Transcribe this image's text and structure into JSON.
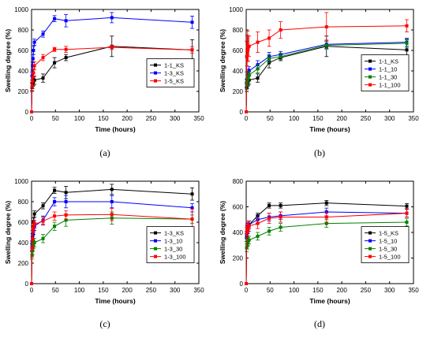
{
  "chart_data": [
    {
      "type": "line",
      "panel": "(a)",
      "xlabel": "Time (hours)",
      "ylabel": "Swelling degree (%)",
      "xlim": [
        0,
        350
      ],
      "ylim": [
        0,
        1000
      ],
      "xticks": [
        0,
        50,
        100,
        150,
        200,
        250,
        300,
        350
      ],
      "yticks": [
        0,
        200,
        400,
        600,
        800,
        1000
      ],
      "legend_position": "center-right",
      "series": [
        {
          "name": "1-1_KS",
          "color": "#000000",
          "x": [
            0,
            1,
            2,
            3,
            4,
            6,
            24,
            48,
            72,
            168,
            336
          ],
          "y": [
            0,
            240,
            270,
            290,
            300,
            310,
            330,
            480,
            530,
            640,
            605
          ],
          "err": [
            0,
            40,
            40,
            40,
            40,
            40,
            40,
            50,
            30,
            100,
            100
          ]
        },
        {
          "name": "1-3_KS",
          "color": "#0000ff",
          "x": [
            0,
            1,
            2,
            3,
            4,
            6,
            24,
            48,
            72,
            168,
            336
          ],
          "y": [
            0,
            350,
            450,
            520,
            600,
            680,
            760,
            910,
            890,
            920,
            875
          ],
          "err": [
            0,
            40,
            40,
            40,
            40,
            30,
            30,
            30,
            60,
            50,
            60
          ]
        },
        {
          "name": "1-5_KS",
          "color": "#ff0000",
          "x": [
            0,
            1,
            2,
            3,
            4,
            6,
            24,
            48,
            72,
            168,
            336
          ],
          "y": [
            0,
            250,
            300,
            340,
            380,
            450,
            530,
            610,
            610,
            630,
            605
          ],
          "err": [
            0,
            40,
            40,
            40,
            40,
            40,
            30,
            20,
            30,
            20,
            30
          ]
        }
      ]
    },
    {
      "type": "line",
      "panel": "(b)",
      "xlabel": "Time (hours)",
      "ylabel": "Swelling degree (%)",
      "xlim": [
        0,
        350
      ],
      "ylim": [
        0,
        1000
      ],
      "xticks": [
        0,
        50,
        100,
        150,
        200,
        250,
        300,
        350
      ],
      "yticks": [
        0,
        200,
        400,
        600,
        800,
        1000
      ],
      "legend_position": "center-right",
      "series": [
        {
          "name": "1-1_KS",
          "color": "#000000",
          "x": [
            0,
            1,
            2,
            3,
            4,
            6,
            24,
            48,
            72,
            168,
            336
          ],
          "y": [
            0,
            240,
            270,
            290,
            300,
            310,
            330,
            480,
            530,
            640,
            605
          ],
          "err": [
            0,
            40,
            40,
            40,
            40,
            40,
            40,
            50,
            30,
            100,
            100
          ]
        },
        {
          "name": "1-1_10",
          "color": "#0000ff",
          "x": [
            0,
            1,
            2,
            3,
            4,
            6,
            24,
            48,
            72,
            168,
            336
          ],
          "y": [
            0,
            280,
            320,
            360,
            380,
            400,
            460,
            540,
            560,
            660,
            680
          ],
          "err": [
            0,
            40,
            40,
            40,
            40,
            40,
            40,
            40,
            30,
            40,
            40
          ]
        },
        {
          "name": "1-1_30",
          "color": "#008000",
          "x": [
            0,
            1,
            2,
            3,
            4,
            6,
            24,
            48,
            72,
            168,
            336
          ],
          "y": [
            0,
            260,
            290,
            320,
            340,
            360,
            420,
            520,
            540,
            650,
            670
          ],
          "err": [
            0,
            40,
            40,
            40,
            40,
            40,
            40,
            40,
            30,
            40,
            40
          ]
        },
        {
          "name": "1-1_100",
          "color": "#ff0000",
          "x": [
            0,
            1,
            2,
            3,
            4,
            6,
            24,
            48,
            72,
            168,
            336
          ],
          "y": [
            0,
            540,
            600,
            640,
            620,
            640,
            680,
            720,
            800,
            830,
            840
          ],
          "err": [
            0,
            150,
            150,
            150,
            120,
            100,
            100,
            80,
            80,
            140,
            60
          ]
        }
      ]
    },
    {
      "type": "line",
      "panel": "(c)",
      "xlabel": "Time (hours)",
      "ylabel": "Swelling degree (%)",
      "xlim": [
        0,
        350
      ],
      "ylim": [
        0,
        1000
      ],
      "xticks": [
        0,
        50,
        100,
        150,
        200,
        250,
        300,
        350
      ],
      "yticks": [
        0,
        200,
        400,
        600,
        800,
        1000
      ],
      "legend_position": "center-right",
      "series": [
        {
          "name": "1-3_KS",
          "color": "#000000",
          "x": [
            0,
            1,
            2,
            3,
            4,
            6,
            24,
            48,
            72,
            168,
            336
          ],
          "y": [
            0,
            350,
            450,
            520,
            600,
            680,
            760,
            910,
            890,
            920,
            875
          ],
          "err": [
            0,
            40,
            40,
            40,
            40,
            30,
            30,
            30,
            60,
            50,
            60
          ]
        },
        {
          "name": "1-3_10",
          "color": "#0000ff",
          "x": [
            0,
            1,
            2,
            3,
            4,
            6,
            24,
            48,
            72,
            168,
            336
          ],
          "y": [
            0,
            360,
            420,
            480,
            520,
            560,
            620,
            800,
            800,
            800,
            740
          ],
          "err": [
            0,
            40,
            40,
            40,
            40,
            40,
            40,
            40,
            60,
            60,
            40
          ]
        },
        {
          "name": "1-3_30",
          "color": "#008000",
          "x": [
            0,
            1,
            2,
            3,
            4,
            6,
            24,
            48,
            72,
            168,
            336
          ],
          "y": [
            0,
            280,
            320,
            360,
            380,
            400,
            440,
            560,
            620,
            640,
            630
          ],
          "err": [
            0,
            40,
            40,
            40,
            40,
            40,
            40,
            40,
            60,
            60,
            40
          ]
        },
        {
          "name": "1-3_100",
          "color": "#ff0000",
          "x": [
            0,
            1,
            2,
            3,
            4,
            6,
            24,
            48,
            72,
            168,
            336
          ],
          "y": [
            0,
            340,
            440,
            520,
            560,
            580,
            610,
            660,
            670,
            675,
            630
          ],
          "err": [
            0,
            80,
            80,
            80,
            60,
            40,
            40,
            40,
            40,
            60,
            100
          ]
        }
      ]
    },
    {
      "type": "line",
      "panel": "(d)",
      "xlabel": "Time (hours)",
      "ylabel": "Swelling degree (%)",
      "xlim": [
        0,
        350
      ],
      "ylim": [
        0,
        800
      ],
      "xticks": [
        0,
        50,
        100,
        150,
        200,
        250,
        300,
        350
      ],
      "yticks": [
        0,
        200,
        400,
        600,
        800
      ],
      "legend_position": "center-right",
      "series": [
        {
          "name": "1-5_KS",
          "color": "#000000",
          "x": [
            0,
            1,
            2,
            3,
            4,
            6,
            24,
            48,
            72,
            168,
            336
          ],
          "y": [
            0,
            360,
            400,
            420,
            440,
            460,
            530,
            610,
            610,
            630,
            605
          ],
          "err": [
            0,
            30,
            30,
            30,
            30,
            30,
            20,
            20,
            20,
            20,
            20
          ]
        },
        {
          "name": "1-5_10",
          "color": "#0000ff",
          "x": [
            0,
            1,
            2,
            3,
            4,
            6,
            24,
            48,
            72,
            168,
            336
          ],
          "y": [
            0,
            380,
            420,
            440,
            450,
            460,
            500,
            520,
            530,
            560,
            550
          ],
          "err": [
            0,
            30,
            30,
            30,
            30,
            30,
            30,
            30,
            30,
            30,
            30
          ]
        },
        {
          "name": "1-5_30",
          "color": "#008000",
          "x": [
            0,
            1,
            2,
            3,
            4,
            6,
            24,
            48,
            72,
            168,
            336
          ],
          "y": [
            0,
            280,
            300,
            320,
            330,
            340,
            370,
            410,
            440,
            470,
            480
          ],
          "err": [
            0,
            30,
            30,
            30,
            30,
            30,
            30,
            30,
            30,
            30,
            30
          ]
        },
        {
          "name": "1-5_100",
          "color": "#ff0000",
          "x": [
            0,
            1,
            2,
            3,
            4,
            6,
            24,
            48,
            72,
            168,
            336
          ],
          "y": [
            0,
            400,
            420,
            440,
            440,
            450,
            470,
            510,
            520,
            520,
            550
          ],
          "err": [
            0,
            40,
            40,
            40,
            40,
            40,
            40,
            40,
            40,
            40,
            30
          ]
        }
      ]
    }
  ]
}
